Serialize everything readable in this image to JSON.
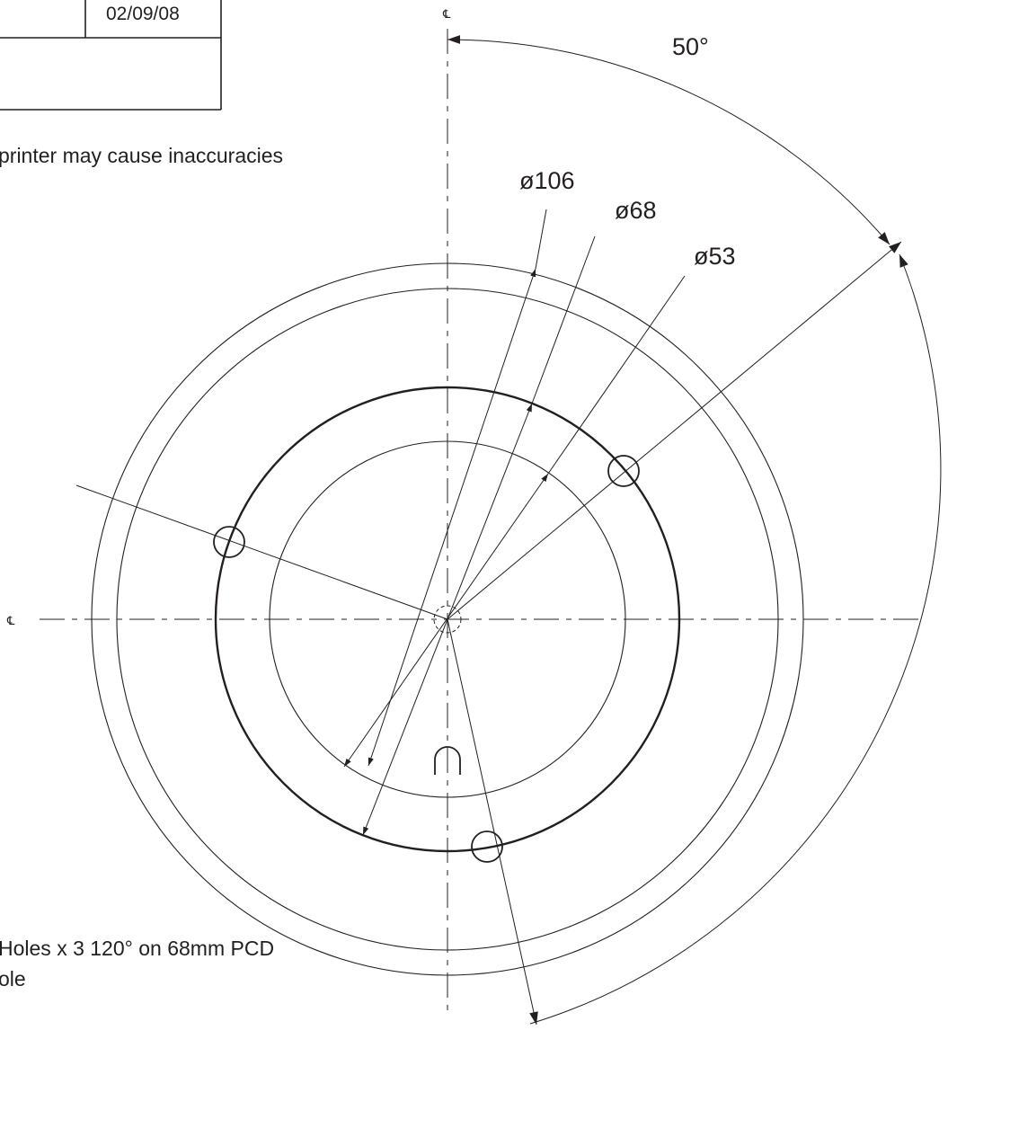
{
  "title_block": {
    "date": "02/09/08"
  },
  "notes": {
    "printer_warning": "printer may cause inaccuracies",
    "holes_note_line1": "Holes x 3  120° on 68mm PCD",
    "holes_note_line2": "ole"
  },
  "centerline_symbol": "℄",
  "dimensions": {
    "angle": "50°",
    "outer_diameter": "ø106",
    "pcd_diameter": "ø68",
    "inner_diameter": "ø53"
  },
  "colors": {
    "ink": "#231f20",
    "paper": "#ffffff"
  }
}
